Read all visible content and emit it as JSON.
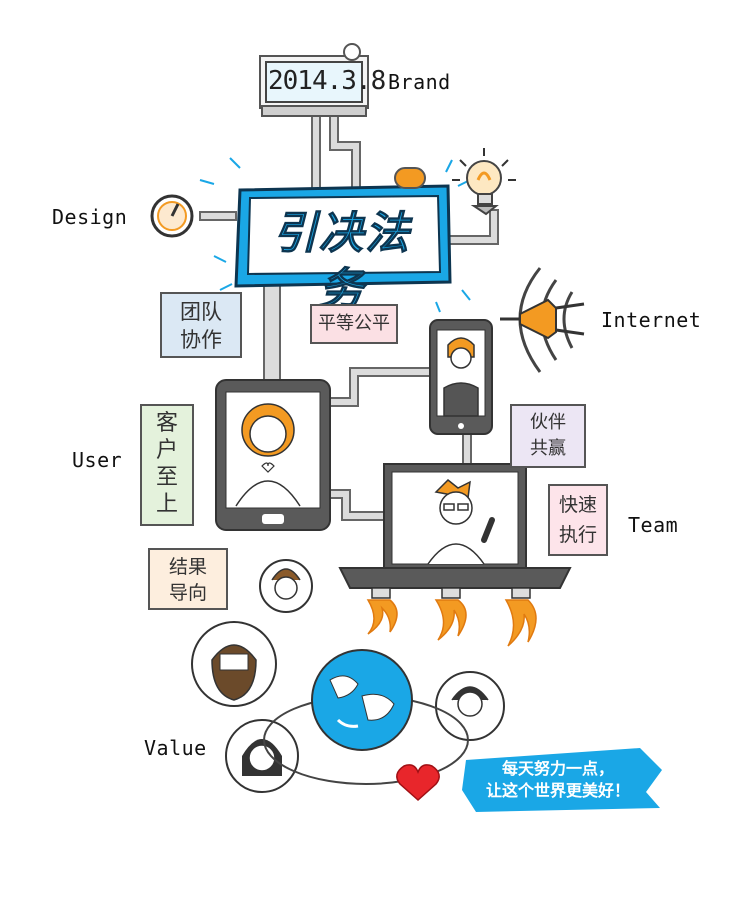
{
  "brand_date": "2014.3.8",
  "logo_text": "引决法务",
  "labels": {
    "brand": "Brand",
    "design": "Design",
    "internet": "Internet",
    "user": "User",
    "team": "Team",
    "value": "Value"
  },
  "notes": {
    "teamwork": [
      "团队",
      "协作"
    ],
    "equality": [
      "平等公平"
    ],
    "partners": [
      "伙伴",
      "共赢"
    ],
    "customer": [
      "客",
      "户",
      "至",
      "上"
    ],
    "fast": [
      "快速",
      "执行"
    ],
    "result": [
      "结果",
      "导向"
    ]
  },
  "slogan": [
    "每天努力一点，",
    "让这个世界更美好！"
  ],
  "colors": {
    "logo_blue": "#1aa7e6",
    "screen_blue": "#dff3fb",
    "device_gray": "#5a5a5a",
    "orange": "#f39a22",
    "heart_red": "#e8262b",
    "teamwork_note": "#dbe8f4",
    "equality_note": "#fbe0e4",
    "partners_note": "#ece6f4",
    "customer_note": "#e4f2dc",
    "fast_note": "#fde4ea",
    "result_note": "#fdeede"
  }
}
